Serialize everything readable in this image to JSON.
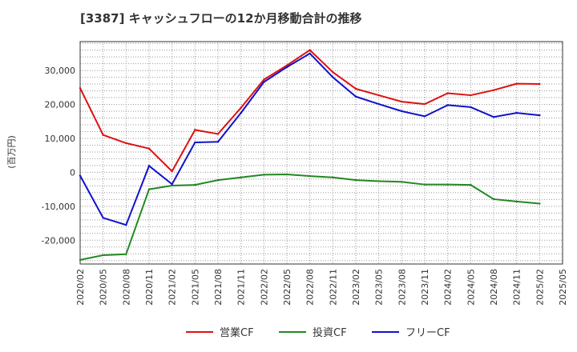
{
  "chart_data": {
    "type": "line",
    "title": "[3387]  キャッシュフローの12か月移動合計の推移",
    "ylabel": "(百万円)",
    "xlabel": "",
    "ylim": [
      -27000,
      38500
    ],
    "yticks": [
      -20000,
      -10000,
      0,
      10000,
      20000,
      30000
    ],
    "ytick_labels": [
      "-20,000",
      "-10,000",
      "0",
      "10,000",
      "20,000",
      "30,000"
    ],
    "xtick_labels": [
      "2020/02",
      "2020/05",
      "2020/08",
      "2020/11",
      "2021/02",
      "2021/05",
      "2021/08",
      "2021/11",
      "2022/02",
      "2022/05",
      "2022/08",
      "2022/11",
      "2023/02",
      "2023/05",
      "2023/08",
      "2023/11",
      "2024/02",
      "2024/05",
      "2024/08",
      "2024/11",
      "2025/02",
      "2025/05"
    ],
    "grid": true,
    "legend_position": "bottom",
    "series": [
      {
        "name": "営業CF",
        "color": "#dd1111",
        "values": [
          24800,
          11000,
          8600,
          7000,
          300,
          12500,
          11300,
          19000,
          27300,
          31500,
          36000,
          29500,
          24600,
          22700,
          20800,
          20100,
          23300,
          22700,
          24200,
          26100,
          26000
        ]
      },
      {
        "name": "投資CF",
        "color": "#228822",
        "values": [
          -25800,
          -24400,
          -24100,
          -5000,
          -3900,
          -3700,
          -2300,
          -1500,
          -700,
          -600,
          -1100,
          -1500,
          -2300,
          -2600,
          -2800,
          -3600,
          -3600,
          -3700,
          -7900,
          -8600,
          -9200
        ]
      },
      {
        "name": "フリーCF",
        "color": "#1111cc",
        "values": [
          -1000,
          -13400,
          -15500,
          1900,
          -3500,
          8800,
          9000,
          17500,
          26600,
          31000,
          35000,
          28000,
          22300,
          20100,
          18000,
          16500,
          19800,
          19200,
          16300,
          17500,
          16800
        ]
      }
    ]
  }
}
